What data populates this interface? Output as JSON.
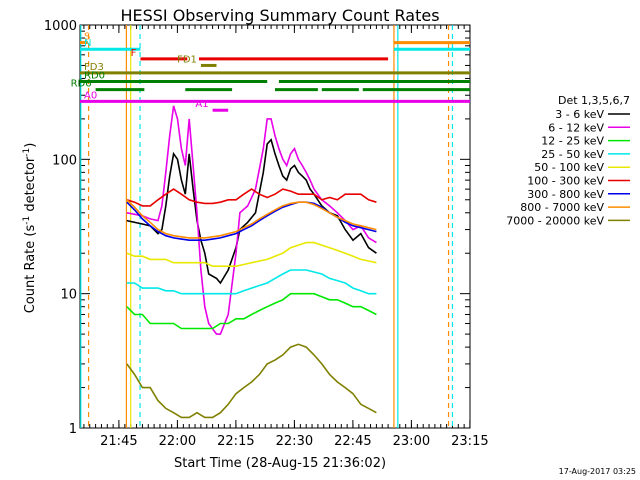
{
  "chart_data": {
    "type": "line",
    "title": "HESSI Observing Summary Count Rates",
    "xlabel": "Start Time (28-Aug-15 21:36:02)",
    "ylabel_parts": [
      "Count Rate (s",
      "-1",
      " detector",
      "-1",
      ")"
    ],
    "y_scale": "log",
    "ylim": [
      1,
      1000
    ],
    "xlim_min": [
      0,
      100
    ],
    "y_ticks": [
      {
        "v": 1,
        "label": "1"
      },
      {
        "v": 10,
        "label": "10"
      },
      {
        "v": 100,
        "label": "100"
      },
      {
        "v": 1000,
        "label": "1000"
      }
    ],
    "x_ticks": [
      {
        "t": 9.97,
        "label": "21:45"
      },
      {
        "t": 24.97,
        "label": "22:00"
      },
      {
        "t": 39.97,
        "label": "22:15"
      },
      {
        "t": 54.97,
        "label": "22:30"
      },
      {
        "t": 69.97,
        "label": "22:45"
      },
      {
        "t": 84.97,
        "label": "23:00"
      },
      {
        "t": 99.97,
        "label": "23:15"
      }
    ],
    "legend_title": "Det 1,3,5,6,7",
    "series": [
      {
        "name": "3 - 6 keV",
        "color": "#000000",
        "x": [
          12,
          16,
          18,
          20,
          21,
          22,
          23,
          24,
          25,
          26,
          27,
          28,
          29,
          30,
          31,
          32,
          33,
          35,
          36,
          38,
          40,
          41,
          43,
          45,
          47,
          48,
          49,
          50,
          51,
          52,
          53,
          54,
          55,
          56,
          57,
          58,
          59,
          60,
          62,
          64,
          66,
          68,
          70,
          72,
          74,
          76
        ],
        "y": [
          35,
          33,
          32,
          28,
          30,
          45,
          75,
          110,
          100,
          70,
          55,
          110,
          60,
          35,
          25,
          20,
          14,
          13,
          12,
          15,
          22,
          30,
          34,
          40,
          80,
          130,
          140,
          110,
          90,
          75,
          70,
          85,
          90,
          80,
          75,
          70,
          60,
          55,
          45,
          40,
          38,
          30,
          25,
          28,
          22,
          20
        ]
      },
      {
        "name": "6 - 12 keV",
        "color": "#e800e8",
        "x": [
          12,
          16,
          18,
          20,
          21,
          22,
          23,
          24,
          25,
          26,
          27,
          28,
          29,
          30,
          31,
          32,
          33,
          35,
          36,
          38,
          40,
          41,
          43,
          45,
          47,
          48,
          49,
          50,
          51,
          52,
          53,
          54,
          55,
          56,
          57,
          58,
          59,
          60,
          62,
          64,
          66,
          68,
          70,
          72,
          74,
          76
        ],
        "y": [
          40,
          38,
          36,
          35,
          45,
          80,
          150,
          250,
          200,
          120,
          90,
          200,
          90,
          40,
          15,
          8,
          6,
          5,
          5,
          7,
          20,
          40,
          45,
          60,
          120,
          200,
          200,
          150,
          120,
          100,
          90,
          110,
          120,
          100,
          90,
          80,
          70,
          60,
          50,
          45,
          40,
          35,
          30,
          32,
          26,
          24
        ]
      },
      {
        "name": "12 - 25 keV",
        "color": "#00e800",
        "x": [
          12,
          14,
          16,
          18,
          20,
          22,
          24,
          26,
          28,
          30,
          32,
          34,
          36,
          38,
          40,
          42,
          44,
          46,
          48,
          50,
          52,
          54,
          56,
          58,
          60,
          62,
          64,
          66,
          68,
          70,
          72,
          74,
          76
        ],
        "y": [
          8,
          7,
          7,
          6,
          6,
          6,
          6,
          5.5,
          5.5,
          5.5,
          5.5,
          5.5,
          6,
          6,
          6.5,
          6.5,
          7,
          7.5,
          8,
          8.5,
          9,
          10,
          10,
          10,
          10,
          9.5,
          9,
          9,
          8.5,
          8,
          8,
          7.5,
          7
        ]
      },
      {
        "name": "25 - 50 keV",
        "color": "#00e8e8",
        "x": [
          12,
          14,
          16,
          18,
          20,
          22,
          24,
          26,
          28,
          30,
          32,
          34,
          36,
          38,
          40,
          42,
          44,
          46,
          48,
          50,
          52,
          54,
          56,
          58,
          60,
          62,
          64,
          66,
          68,
          70,
          72,
          74,
          76
        ],
        "y": [
          12,
          12,
          11,
          11,
          11,
          10.5,
          10.5,
          10,
          10,
          10,
          10,
          10,
          10,
          10,
          10,
          10.5,
          11,
          11.5,
          12,
          13,
          14,
          15,
          15,
          15,
          14.5,
          14,
          13,
          12.5,
          12,
          11,
          10.5,
          10,
          10
        ]
      },
      {
        "name": "50 - 100 keV",
        "color": "#e8e800",
        "x": [
          12,
          14,
          16,
          18,
          20,
          22,
          24,
          26,
          28,
          30,
          32,
          34,
          36,
          38,
          40,
          42,
          44,
          46,
          48,
          50,
          52,
          54,
          56,
          58,
          60,
          62,
          64,
          66,
          68,
          70,
          72,
          74,
          76
        ],
        "y": [
          20,
          19,
          19,
          18,
          18,
          18,
          17,
          17,
          17,
          17,
          17,
          16,
          16,
          16,
          16,
          16.5,
          17,
          17.5,
          18,
          19,
          20,
          22,
          23,
          24,
          24,
          23,
          22,
          21,
          20,
          19,
          18,
          17.5,
          17
        ]
      },
      {
        "name": "100 - 300 keV",
        "color": "#e80000",
        "x": [
          12,
          14,
          16,
          18,
          20,
          22,
          24,
          26,
          28,
          30,
          32,
          34,
          36,
          38,
          40,
          42,
          44,
          46,
          48,
          50,
          52,
          54,
          56,
          58,
          60,
          62,
          64,
          66,
          68,
          70,
          72,
          74,
          76
        ],
        "y": [
          50,
          48,
          45,
          45,
          50,
          55,
          60,
          55,
          50,
          48,
          47,
          47,
          48,
          50,
          50,
          55,
          60,
          55,
          52,
          55,
          60,
          58,
          55,
          55,
          55,
          50,
          52,
          50,
          55,
          55,
          55,
          50,
          48
        ]
      },
      {
        "name": "300 - 800 keV",
        "color": "#0000e8",
        "x": [
          12,
          14,
          16,
          18,
          20,
          22,
          24,
          26,
          28,
          30,
          32,
          34,
          36,
          38,
          40,
          42,
          44,
          46,
          48,
          50,
          52,
          54,
          56,
          58,
          60,
          62,
          64,
          66,
          68,
          70,
          72,
          74,
          76
        ],
        "y": [
          48,
          42,
          36,
          32,
          29,
          27,
          26,
          25.5,
          25,
          25,
          25,
          25.5,
          26,
          27,
          28,
          30,
          32,
          35,
          38,
          41,
          44,
          46,
          48,
          48,
          47,
          44,
          40,
          37,
          34,
          32,
          31,
          30,
          29
        ]
      },
      {
        "name": "800 - 7000 keV",
        "color": "#ff8c00",
        "x": [
          12,
          14,
          16,
          18,
          20,
          22,
          24,
          26,
          28,
          30,
          32,
          34,
          36,
          38,
          40,
          42,
          44,
          46,
          48,
          50,
          52,
          54,
          56,
          58,
          60,
          62,
          64,
          66,
          68,
          70,
          72,
          74,
          76
        ],
        "y": [
          50,
          44,
          38,
          34,
          30,
          28,
          27,
          26.5,
          26,
          26,
          26,
          26.5,
          27,
          28,
          29,
          31,
          33,
          36,
          39,
          42,
          45,
          47,
          48,
          48,
          46,
          43,
          40,
          37,
          35,
          33,
          32,
          31,
          30
        ]
      },
      {
        "name": "7000 - 20000 keV",
        "color": "#808000",
        "x": [
          12,
          14,
          16,
          18,
          20,
          22,
          24,
          26,
          28,
          30,
          32,
          34,
          36,
          38,
          40,
          42,
          44,
          46,
          48,
          50,
          52,
          54,
          56,
          58,
          60,
          62,
          64,
          66,
          68,
          70,
          72,
          74,
          76
        ],
        "y": [
          3,
          2.5,
          2,
          2,
          1.6,
          1.4,
          1.3,
          1.2,
          1.2,
          1.3,
          1.2,
          1.2,
          1.3,
          1.5,
          1.8,
          2,
          2.2,
          2.5,
          3,
          3.2,
          3.5,
          4,
          4.2,
          4,
          3.5,
          3,
          2.5,
          2.2,
          2,
          1.8,
          1.5,
          1.4,
          1.3
        ]
      }
    ],
    "vlines": [
      {
        "t": 2.2,
        "color": "#ff8c00",
        "dash": true
      },
      {
        "t": 15.4,
        "color": "#00e8e8",
        "dash": true
      },
      {
        "t": 80.5,
        "color": "#ff8c00",
        "dash": false
      },
      {
        "t": 81.5,
        "color": "#00e8e8",
        "dash": false
      },
      {
        "t": 94.5,
        "color": "#ff8c00",
        "dash": true
      },
      {
        "t": 95.5,
        "color": "#00e8e8",
        "dash": true
      },
      {
        "t": 0.2,
        "color": "#00e8e8",
        "dash": false
      },
      {
        "t": 11.9,
        "color": "#ff8c00",
        "dash": false
      },
      {
        "t": 13.0,
        "color": "#e8e800",
        "dash": false
      }
    ],
    "flag_bars": [
      {
        "label": "S",
        "color": "#ff8c00",
        "y": 740,
        "segments": [
          [
            0,
            2
          ],
          [
            80.5,
            100
          ]
        ]
      },
      {
        "label": "N",
        "color": "#00e8e8",
        "y": 660,
        "segments": [
          [
            0,
            15.5
          ],
          [
            80.5,
            100
          ]
        ]
      },
      {
        "label": "F",
        "color": "#e80000",
        "y": 560,
        "segments": [
          [
            15.5,
            27.5
          ],
          [
            30.5,
            79
          ]
        ]
      },
      {
        "label": "FD1",
        "color": "#808000",
        "y": 500,
        "segments": [
          [
            31,
            35
          ]
        ]
      },
      {
        "label": "FD3",
        "color": "#808000",
        "y": 440,
        "segments": [
          [
            0,
            100
          ]
        ]
      },
      {
        "label": "RD0",
        "color": "#008000",
        "y": 380,
        "segments": [
          [
            0,
            48
          ],
          [
            51,
            100
          ]
        ]
      },
      {
        "label": "RD6",
        "color": "#008000",
        "y": 330,
        "segments": [
          [
            4,
            16.5
          ],
          [
            27,
            39
          ],
          [
            50,
            61
          ],
          [
            62,
            71.5
          ],
          [
            72.5,
            100
          ]
        ]
      },
      {
        "label": "A0",
        "color": "#e800e8",
        "y": 270,
        "segments": [
          [
            0,
            100
          ]
        ]
      },
      {
        "label": "A1",
        "color": "#e800e8",
        "y": 232,
        "segments": [
          [
            34,
            38
          ]
        ]
      }
    ]
  },
  "footer": {
    "timestamp": "17-Aug-2017 03:25"
  }
}
